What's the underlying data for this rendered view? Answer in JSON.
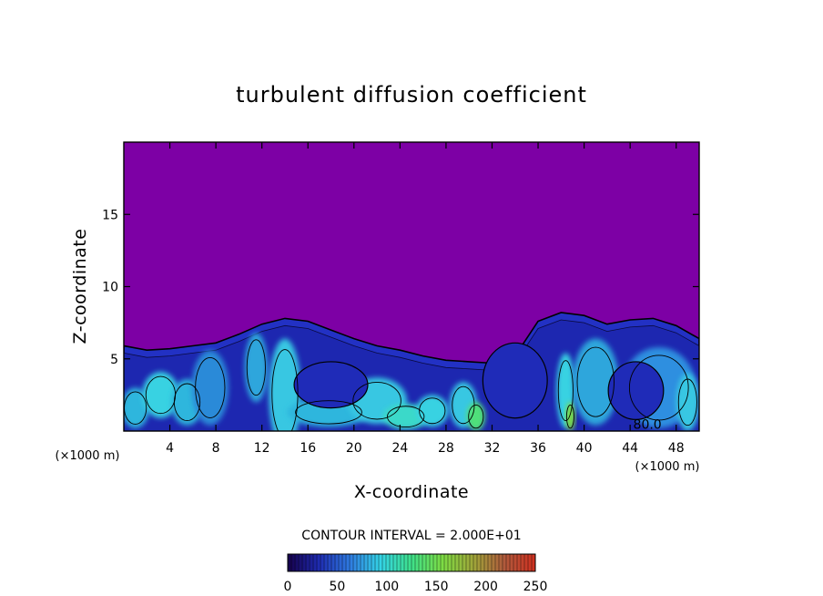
{
  "chart_data": {
    "type": "heatmap",
    "title": "turbulent diffusion coefficient",
    "xlabel": "X-coordinate",
    "ylabel": "Z-coordinate",
    "x_unit": "(×1000 m)",
    "z_unit": "(×1000 m)",
    "xlim": [
      0,
      50
    ],
    "zlim": [
      0,
      20
    ],
    "x_ticks": [
      4,
      8,
      12,
      16,
      20,
      24,
      28,
      32,
      36,
      40,
      44,
      48
    ],
    "z_ticks": [
      5,
      10,
      15
    ],
    "contour_interval_text": "CONTOUR INTERVAL = 2.000E+01",
    "contour_label": "80.0",
    "contour_label_x": 45.5,
    "contour_label_z": 0.1,
    "colorbar": {
      "min": 0,
      "max": 250,
      "ticks": [
        0,
        50,
        100,
        150,
        200,
        250
      ],
      "colors": [
        "#16004a",
        "#1e2bb0",
        "#2f7ae0",
        "#34d4e6",
        "#3ee08a",
        "#7ddc44",
        "#a0a63a",
        "#b05a3c",
        "#d03020"
      ]
    },
    "background_color": "#7d00a5",
    "turbulent_layer_top_z": [
      [
        0,
        5.9
      ],
      [
        2,
        5.6
      ],
      [
        4,
        5.7
      ],
      [
        6,
        5.9
      ],
      [
        8,
        6.1
      ],
      [
        10,
        6.7
      ],
      [
        12,
        7.4
      ],
      [
        14,
        7.8
      ],
      [
        16,
        7.6
      ],
      [
        18,
        7.0
      ],
      [
        20,
        6.4
      ],
      [
        22,
        5.9
      ],
      [
        24,
        5.6
      ],
      [
        26,
        5.2
      ],
      [
        28,
        4.9
      ],
      [
        30,
        4.8
      ],
      [
        32,
        4.7
      ],
      [
        34,
        5.2
      ],
      [
        36,
        7.6
      ],
      [
        38,
        8.2
      ],
      [
        40,
        8.0
      ],
      [
        42,
        7.4
      ],
      [
        44,
        7.7
      ],
      [
        46,
        7.8
      ],
      [
        48,
        7.3
      ],
      [
        50,
        6.4
      ]
    ]
  }
}
